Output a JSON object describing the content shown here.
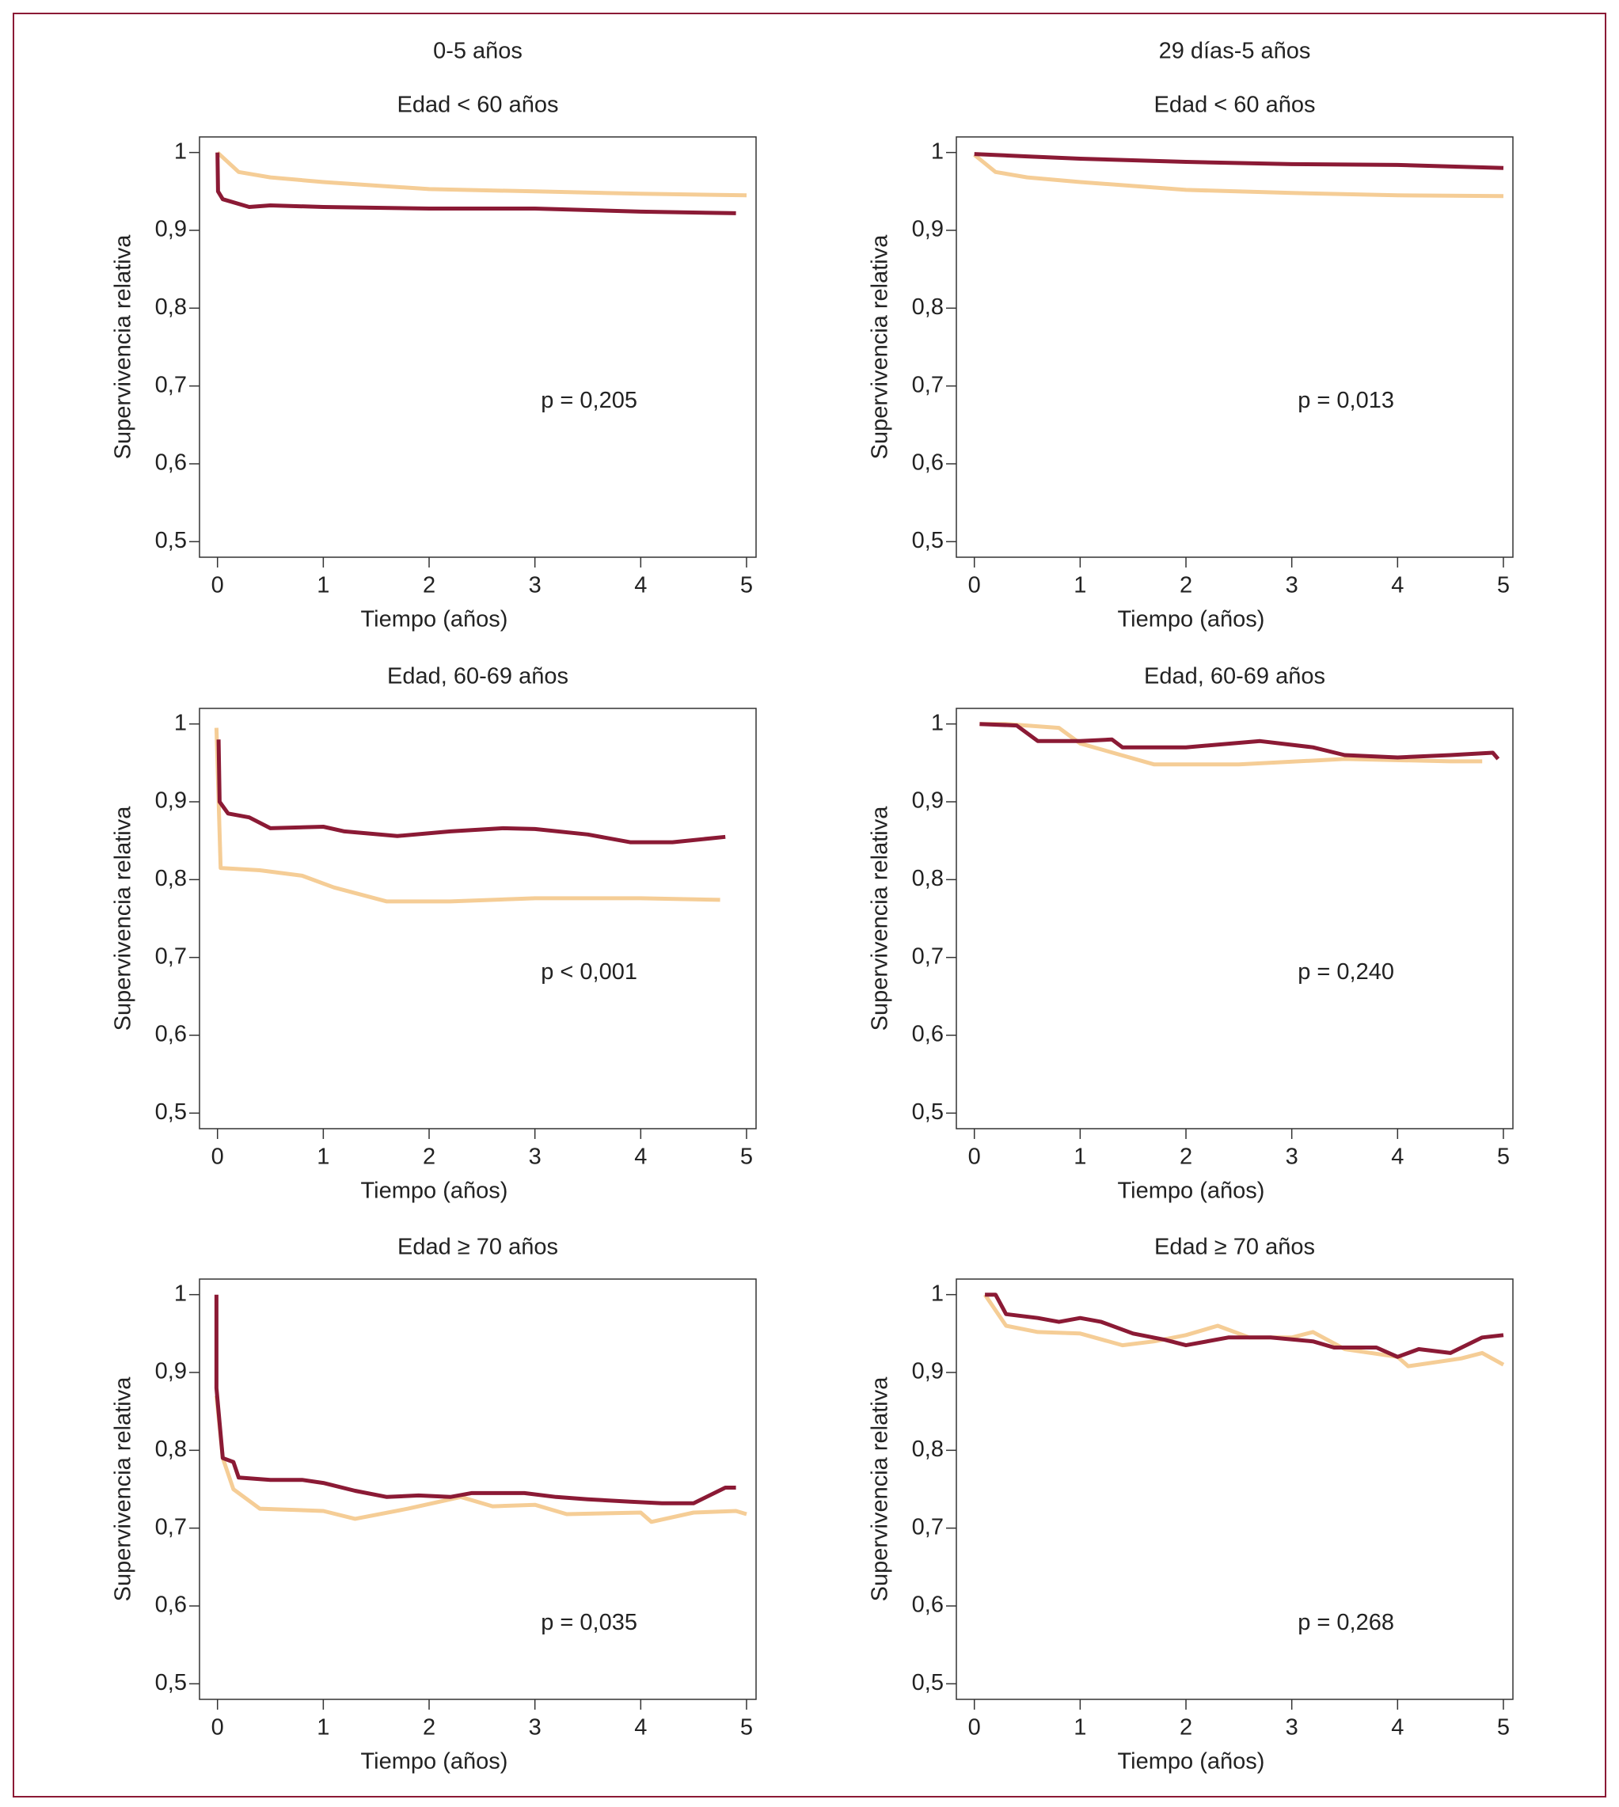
{
  "chart_data": [
    {
      "type": "line",
      "supertitle": "0-5 años",
      "title": "Edad < 60 años",
      "xlabel": "Tiempo (años)",
      "ylabel": "Supervivencia relativa",
      "annotation": "p = 0,205",
      "xlim": [
        -0.17,
        5.09
      ],
      "ylim": [
        0.48,
        1.02
      ],
      "xticks": [
        0,
        1,
        2,
        3,
        4,
        5
      ],
      "yticks": [
        {
          "value": 0.5,
          "label": "0,5"
        },
        {
          "value": 0.6,
          "label": "0,6"
        },
        {
          "value": 0.7,
          "label": "0,7"
        },
        {
          "value": 0.8,
          "label": "0,8"
        },
        {
          "value": 0.9,
          "label": "0,9"
        },
        1
      ],
      "series": [
        {
          "color": "#f5cd96",
          "x": [
            0,
            0.2,
            0.5,
            1,
            2,
            3,
            4,
            5
          ],
          "values": [
            1,
            0.975,
            0.968,
            0.962,
            0.953,
            0.95,
            0.947,
            0.945
          ]
        },
        {
          "color": "#8b1a35",
          "x": [
            0,
            0.005,
            0.05,
            0.3,
            0.5,
            1,
            2,
            3,
            4,
            4.9
          ],
          "values": [
            1,
            0.95,
            0.94,
            0.93,
            0.932,
            0.93,
            0.928,
            0.928,
            0.924,
            0.922
          ]
        }
      ]
    },
    {
      "type": "line",
      "supertitle": "29 días-5 años",
      "title": "Edad < 60 años",
      "xlabel": "Tiempo (años)",
      "ylabel": "Supervivencia relativa",
      "annotation": "p = 0,013",
      "xlim": [
        -0.17,
        5.09
      ],
      "ylim": [
        0.48,
        1.02
      ],
      "xticks": [
        0,
        1,
        2,
        3,
        4,
        5
      ],
      "yticks": [
        {
          "value": 0.5,
          "label": "0,5"
        },
        {
          "value": 0.6,
          "label": "0,6"
        },
        {
          "value": 0.7,
          "label": "0,7"
        },
        {
          "value": 0.8,
          "label": "0,8"
        },
        {
          "value": 0.9,
          "label": "0,9"
        },
        1
      ],
      "series": [
        {
          "color": "#f5cd96",
          "x": [
            0,
            0.2,
            0.5,
            1,
            2,
            3,
            4,
            5
          ],
          "values": [
            0.997,
            0.975,
            0.968,
            0.962,
            0.952,
            0.948,
            0.945,
            0.944
          ]
        },
        {
          "color": "#8b1a35",
          "x": [
            0,
            0.5,
            1,
            2,
            3,
            4,
            5
          ],
          "values": [
            0.998,
            0.995,
            0.992,
            0.988,
            0.985,
            0.984,
            0.98
          ]
        }
      ]
    },
    {
      "type": "line",
      "title": "Edad, 60-69 años",
      "xlabel": "Tiempo (años)",
      "ylabel": "Supervivencia relativa",
      "annotation": "p < 0,001",
      "xlim": [
        -0.17,
        5.09
      ],
      "ylim": [
        0.48,
        1.02
      ],
      "xticks": [
        0,
        1,
        2,
        3,
        4,
        5
      ],
      "yticks": [
        {
          "value": 0.5,
          "label": "0,5"
        },
        {
          "value": 0.6,
          "label": "0,6"
        },
        {
          "value": 0.7,
          "label": "0,7"
        },
        {
          "value": 0.8,
          "label": "0,8"
        },
        {
          "value": 0.9,
          "label": "0,9"
        },
        1
      ],
      "series": [
        {
          "color": "#f5cd96",
          "x": [
            -0.01,
            0.03,
            0.4,
            0.8,
            1.1,
            1.6,
            2.2,
            3,
            4,
            4.75
          ],
          "values": [
            0.995,
            0.815,
            0.812,
            0.805,
            0.79,
            0.772,
            0.772,
            0.776,
            0.776,
            0.774
          ]
        },
        {
          "color": "#8b1a35",
          "x": [
            0.01,
            0.02,
            0.1,
            0.3,
            0.5,
            1,
            1.2,
            1.7,
            2.2,
            2.7,
            3,
            3.5,
            3.9,
            4.3,
            4.8
          ],
          "values": [
            0.98,
            0.9,
            0.885,
            0.88,
            0.866,
            0.868,
            0.862,
            0.856,
            0.862,
            0.866,
            0.865,
            0.858,
            0.848,
            0.848,
            0.855
          ]
        }
      ]
    },
    {
      "type": "line",
      "title": "Edad, 60-69 años",
      "xlabel": "Tiempo (años)",
      "ylabel": "Supervivencia relativa",
      "annotation": "p = 0,240",
      "xlim": [
        -0.17,
        5.09
      ],
      "ylim": [
        0.48,
        1.02
      ],
      "xticks": [
        0,
        1,
        2,
        3,
        4,
        5
      ],
      "yticks": [
        {
          "value": 0.5,
          "label": "0,5"
        },
        {
          "value": 0.6,
          "label": "0,6"
        },
        {
          "value": 0.7,
          "label": "0,7"
        },
        {
          "value": 0.8,
          "label": "0,8"
        },
        {
          "value": 0.9,
          "label": "0,9"
        },
        1
      ],
      "series": [
        {
          "color": "#f5cd96",
          "x": [
            0.05,
            0.3,
            0.8,
            1,
            1.7,
            2.5,
            3.5,
            4.5,
            4.8
          ],
          "values": [
            1,
            1,
            0.995,
            0.975,
            0.948,
            0.948,
            0.955,
            0.952,
            0.952
          ]
        },
        {
          "color": "#8b1a35",
          "x": [
            0.05,
            0.4,
            0.6,
            1,
            1.3,
            1.4,
            2,
            2.7,
            3.2,
            3.5,
            4,
            4.5,
            4.9,
            4.95
          ],
          "values": [
            1,
            0.998,
            0.978,
            0.978,
            0.98,
            0.97,
            0.97,
            0.978,
            0.97,
            0.96,
            0.957,
            0.96,
            0.963,
            0.955
          ]
        }
      ]
    },
    {
      "type": "line",
      "title": "Edad ≥ 70 años",
      "xlabel": "Tiempo (años)",
      "ylabel": "Supervivencia relativa",
      "annotation": "p = 0,035",
      "xlim": [
        -0.17,
        5.09
      ],
      "ylim": [
        0.48,
        1.02
      ],
      "xticks": [
        0,
        1,
        2,
        3,
        4,
        5
      ],
      "yticks": [
        {
          "value": 0.5,
          "label": "0,5"
        },
        {
          "value": 0.6,
          "label": "0,6"
        },
        {
          "value": 0.7,
          "label": "0,7"
        },
        {
          "value": 0.8,
          "label": "0,8"
        },
        {
          "value": 0.9,
          "label": "0,9"
        },
        1
      ],
      "series": [
        {
          "color": "#f5cd96",
          "x": [
            -0.01,
            0.05,
            0.15,
            0.4,
            1,
            1.3,
            1.8,
            2.3,
            2.6,
            3,
            3.3,
            4,
            4.1,
            4.5,
            4.9,
            5
          ],
          "values": [
            0.87,
            0.79,
            0.75,
            0.725,
            0.722,
            0.712,
            0.725,
            0.74,
            0.728,
            0.73,
            0.718,
            0.72,
            0.708,
            0.72,
            0.722,
            0.718
          ]
        },
        {
          "color": "#8b1a35",
          "x": [
            -0.01,
            -0.01,
            0.05,
            0.15,
            0.2,
            0.5,
            0.8,
            1,
            1.3,
            1.6,
            1.9,
            2.2,
            2.4,
            2.9,
            3.2,
            3.5,
            3.9,
            4.2,
            4.5,
            4.8,
            4.9
          ],
          "values": [
            1,
            0.88,
            0.79,
            0.785,
            0.765,
            0.762,
            0.762,
            0.758,
            0.748,
            0.74,
            0.742,
            0.74,
            0.745,
            0.745,
            0.74,
            0.737,
            0.734,
            0.732,
            0.732,
            0.752,
            0.752
          ]
        }
      ]
    },
    {
      "type": "line",
      "title": "Edad ≥ 70 años",
      "xlabel": "Tiempo (años)",
      "ylabel": "Supervivencia relativa",
      "annotation": "p = 0,268",
      "xlim": [
        -0.17,
        5.09
      ],
      "ylim": [
        0.48,
        1.02
      ],
      "xticks": [
        0,
        1,
        2,
        3,
        4,
        5
      ],
      "yticks": [
        {
          "value": 0.5,
          "label": "0,5"
        },
        {
          "value": 0.6,
          "label": "0,6"
        },
        {
          "value": 0.7,
          "label": "0,7"
        },
        {
          "value": 0.8,
          "label": "0,8"
        },
        {
          "value": 0.9,
          "label": "0,9"
        },
        1
      ],
      "series": [
        {
          "color": "#f5cd96",
          "x": [
            0.1,
            0.3,
            0.6,
            1,
            1.4,
            1.7,
            2,
            2.3,
            2.6,
            3,
            3.2,
            3.5,
            4,
            4.1,
            4.6,
            4.8,
            5
          ],
          "values": [
            1,
            0.96,
            0.952,
            0.95,
            0.935,
            0.94,
            0.948,
            0.96,
            0.945,
            0.945,
            0.952,
            0.93,
            0.92,
            0.908,
            0.918,
            0.925,
            0.91
          ]
        },
        {
          "color": "#8b1a35",
          "x": [
            0.1,
            0.2,
            0.3,
            0.6,
            0.8,
            1,
            1.2,
            1.5,
            1.8,
            2,
            2.4,
            2.8,
            3.2,
            3.4,
            3.8,
            4,
            4.2,
            4.5,
            4.8,
            5
          ],
          "values": [
            1,
            1,
            0.975,
            0.97,
            0.965,
            0.97,
            0.965,
            0.95,
            0.942,
            0.935,
            0.945,
            0.945,
            0.94,
            0.932,
            0.932,
            0.92,
            0.93,
            0.925,
            0.945,
            0.948
          ]
        }
      ]
    }
  ]
}
